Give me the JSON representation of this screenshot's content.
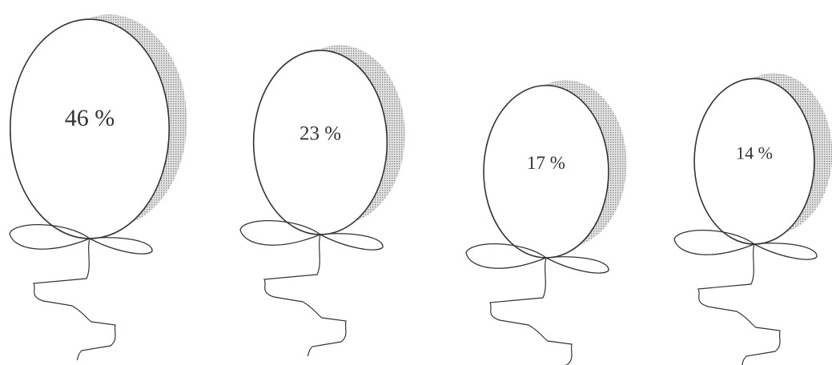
{
  "chart_data": {
    "type": "pictogram",
    "values": [
      46,
      23,
      17,
      14
    ],
    "value_labels": [
      "46 %",
      "23 %",
      "17 %",
      "14 %"
    ]
  }
}
